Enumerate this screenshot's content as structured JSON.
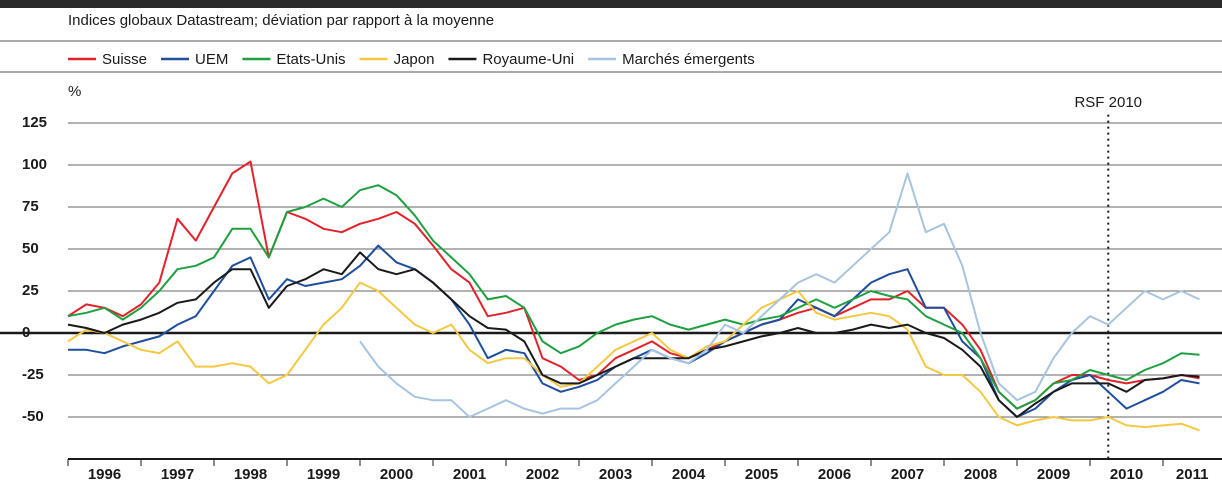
{
  "chart_data": {
    "type": "line",
    "subtitle": "Indices globaux Datastream; déviation par rapport à la moyenne",
    "y_unit": "%",
    "annotation": {
      "text": "RSF 2010",
      "x": 2010.25
    },
    "x": [
      1996,
      1996.25,
      1996.5,
      1996.75,
      1997,
      1997.25,
      1997.5,
      1997.75,
      1998,
      1998.25,
      1998.5,
      1998.75,
      1999,
      1999.25,
      1999.5,
      1999.75,
      2000,
      2000.25,
      2000.5,
      2000.75,
      2001,
      2001.25,
      2001.5,
      2001.75,
      2002,
      2002.25,
      2002.5,
      2002.75,
      2003,
      2003.25,
      2003.5,
      2003.75,
      2004,
      2004.25,
      2004.5,
      2004.75,
      2005,
      2005.25,
      2005.5,
      2005.75,
      2006,
      2006.25,
      2006.5,
      2006.75,
      2007,
      2007.25,
      2007.5,
      2007.75,
      2008,
      2008.25,
      2008.5,
      2008.75,
      2009,
      2009.25,
      2009.5,
      2009.75,
      2010,
      2010.25,
      2010.5,
      2010.75,
      2011,
      2011.25,
      2011.5
    ],
    "xlim": [
      1996,
      2011.8
    ],
    "xticks": [
      1996,
      1997,
      1998,
      1999,
      2000,
      2001,
      2002,
      2003,
      2004,
      2005,
      2006,
      2007,
      2008,
      2009,
      2010,
      2011
    ],
    "ylim": [
      -75,
      130
    ],
    "yticks": [
      -50,
      -25,
      0,
      25,
      50,
      75,
      100,
      125
    ],
    "grid": true,
    "series": [
      {
        "name": "Suisse",
        "color": "#e2222b",
        "values": [
          10,
          17,
          15,
          10,
          17,
          30,
          68,
          55,
          75,
          95,
          102,
          45,
          72,
          68,
          62,
          60,
          65,
          68,
          72,
          65,
          52,
          38,
          30,
          10,
          12,
          15,
          -15,
          -20,
          -28,
          -25,
          -15,
          -10,
          -5,
          -12,
          -15,
          -10,
          -5,
          0,
          5,
          8,
          12,
          15,
          10,
          15,
          20,
          20,
          25,
          15,
          15,
          5,
          -10,
          -35,
          -45,
          -40,
          -30,
          -25,
          -25,
          -28,
          -30,
          -28,
          -27,
          -25,
          -27
        ]
      },
      {
        "name": "UEM",
        "color": "#1f4e9c",
        "values": [
          -10,
          -10,
          -12,
          -8,
          -5,
          -2,
          5,
          10,
          25,
          40,
          45,
          20,
          32,
          28,
          30,
          32,
          40,
          52,
          42,
          38,
          30,
          20,
          5,
          -15,
          -10,
          -12,
          -30,
          -35,
          -32,
          -28,
          -20,
          -15,
          -10,
          -15,
          -18,
          -12,
          -5,
          0,
          5,
          8,
          20,
          15,
          10,
          20,
          30,
          35,
          38,
          15,
          15,
          -5,
          -15,
          -40,
          -50,
          -45,
          -35,
          -28,
          -25,
          -35,
          -45,
          -40,
          -35,
          -28,
          -30
        ]
      },
      {
        "name": "Etats-Unis",
        "color": "#1fa040",
        "values": [
          10,
          12,
          15,
          8,
          15,
          25,
          38,
          40,
          45,
          62,
          62,
          45,
          72,
          75,
          80,
          75,
          85,
          88,
          82,
          70,
          55,
          45,
          35,
          20,
          22,
          15,
          -5,
          -12,
          -8,
          0,
          5,
          8,
          10,
          5,
          2,
          5,
          8,
          5,
          8,
          10,
          15,
          20,
          15,
          20,
          25,
          22,
          20,
          10,
          5,
          0,
          -15,
          -35,
          -45,
          -40,
          -30,
          -28,
          -22,
          -25,
          -28,
          -22,
          -18,
          -12,
          -13
        ]
      },
      {
        "name": "Japon",
        "color": "#f5c842",
        "values": [
          -5,
          2,
          0,
          -5,
          -10,
          -12,
          -5,
          -20,
          -20,
          -18,
          -20,
          -30,
          -25,
          -10,
          5,
          15,
          30,
          25,
          15,
          5,
          0,
          5,
          -10,
          -18,
          -15,
          -15,
          -25,
          -32,
          -30,
          -20,
          -10,
          -5,
          0,
          -10,
          -15,
          -8,
          -5,
          5,
          15,
          20,
          25,
          12,
          8,
          10,
          12,
          10,
          2,
          -20,
          -25,
          -25,
          -35,
          -50,
          -55,
          -52,
          -50,
          -52,
          -52,
          -50,
          -55,
          -56,
          -55,
          -54,
          -58
        ]
      },
      {
        "name": "Royaume-Uni",
        "color": "#1a1a1a",
        "values": [
          5,
          3,
          0,
          5,
          8,
          12,
          18,
          20,
          30,
          38,
          38,
          15,
          28,
          32,
          38,
          35,
          48,
          38,
          35,
          38,
          30,
          20,
          10,
          3,
          2,
          -5,
          -25,
          -30,
          -30,
          -25,
          -20,
          -15,
          -15,
          -15,
          -15,
          -10,
          -8,
          -5,
          -2,
          0,
          3,
          0,
          0,
          2,
          5,
          3,
          5,
          0,
          -3,
          -10,
          -20,
          -40,
          -50,
          -42,
          -35,
          -30,
          -30,
          -30,
          -35,
          -28,
          -27,
          -25,
          -26
        ]
      },
      {
        "name": "Marchés émergents",
        "color": "#a7c4e0",
        "values": [
          null,
          null,
          null,
          null,
          null,
          null,
          null,
          null,
          null,
          null,
          null,
          null,
          null,
          null,
          null,
          null,
          -5,
          -20,
          -30,
          -38,
          -40,
          -40,
          -50,
          -45,
          -40,
          -45,
          -48,
          -45,
          -45,
          -40,
          -30,
          -20,
          -10,
          -15,
          -18,
          -10,
          5,
          0,
          10,
          20,
          30,
          35,
          30,
          40,
          50,
          60,
          95,
          60,
          65,
          40,
          0,
          -30,
          -40,
          -35,
          -15,
          0,
          10,
          5,
          15,
          25,
          20,
          25,
          20
        ]
      }
    ]
  }
}
